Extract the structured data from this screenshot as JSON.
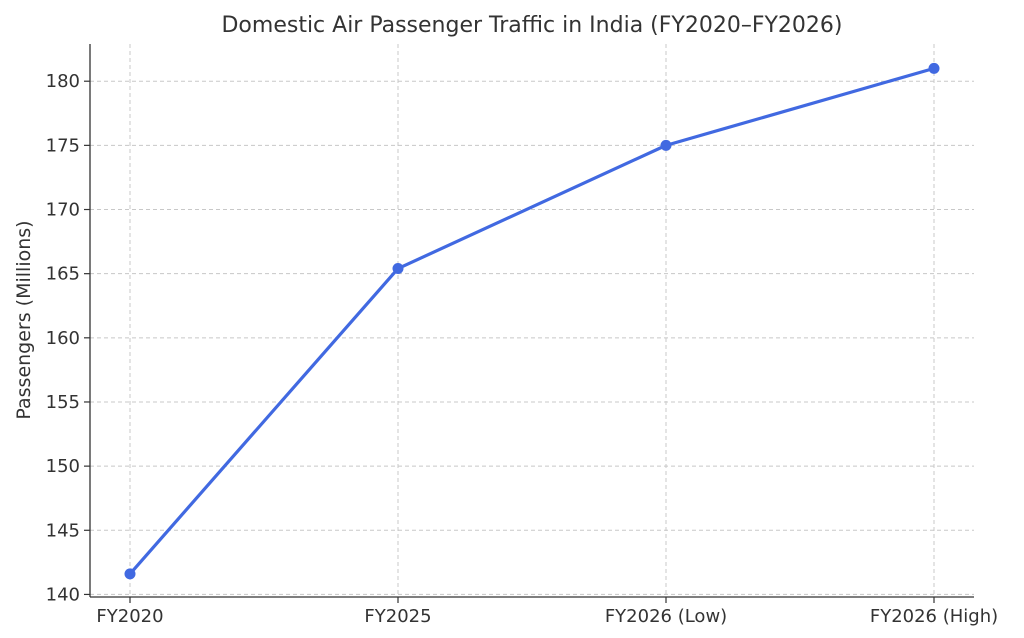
{
  "chart_data": {
    "type": "line",
    "title": "Domestic Air Passenger Traffic in India (FY2020–FY2026)",
    "xlabel": "",
    "ylabel": "Passengers (Millions)",
    "categories": [
      "FY2020",
      "FY2025",
      "FY2026 (Low)",
      "FY2026 (High)"
    ],
    "series": [
      {
        "values": [
          141.6,
          165.4,
          175,
          181
        ]
      }
    ],
    "ylim": [
      139.8,
      182.9
    ],
    "yticks": [
      140,
      145,
      150,
      155,
      160,
      165,
      170,
      175,
      180
    ],
    "grid": true,
    "legend": "none",
    "colors": {
      "series": "#4169e1",
      "grid": "#c8c8c8",
      "axis": "#333333",
      "text": "#333333"
    }
  }
}
